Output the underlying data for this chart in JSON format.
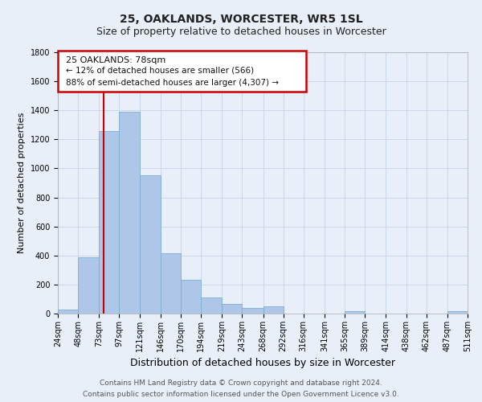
{
  "title": "25, OAKLANDS, WORCESTER, WR5 1SL",
  "subtitle": "Size of property relative to detached houses in Worcester",
  "xlabel": "Distribution of detached houses by size in Worcester",
  "ylabel": "Number of detached properties",
  "footnote1": "Contains HM Land Registry data © Crown copyright and database right 2024.",
  "footnote2": "Contains public sector information licensed under the Open Government Licence v3.0.",
  "bar_left_edges": [
    24,
    48,
    73,
    97,
    121,
    146,
    170,
    194,
    219,
    243,
    268,
    292,
    316,
    341,
    365,
    389,
    414,
    438,
    462,
    487
  ],
  "bar_widths": [
    24,
    25,
    24,
    24,
    25,
    24,
    24,
    25,
    24,
    25,
    24,
    24,
    25,
    24,
    24,
    25,
    24,
    24,
    25,
    24
  ],
  "bar_heights": [
    25,
    390,
    1260,
    1390,
    950,
    415,
    235,
    110,
    65,
    40,
    50,
    0,
    0,
    0,
    15,
    0,
    0,
    0,
    0,
    15
  ],
  "bar_color": "#aec6e8",
  "bar_edgecolor": "#7bafd4",
  "x_tick_labels": [
    "24sqm",
    "48sqm",
    "73sqm",
    "97sqm",
    "121sqm",
    "146sqm",
    "170sqm",
    "194sqm",
    "219sqm",
    "243sqm",
    "268sqm",
    "292sqm",
    "316sqm",
    "341sqm",
    "365sqm",
    "389sqm",
    "414sqm",
    "438sqm",
    "462sqm",
    "487sqm",
    "511sqm"
  ],
  "x_tick_positions": [
    24,
    48,
    73,
    97,
    121,
    146,
    170,
    194,
    219,
    243,
    268,
    292,
    316,
    341,
    365,
    389,
    414,
    438,
    462,
    487,
    511
  ],
  "xlim": [
    24,
    511
  ],
  "ylim": [
    0,
    1800
  ],
  "yticks": [
    0,
    200,
    400,
    600,
    800,
    1000,
    1200,
    1400,
    1600,
    1800
  ],
  "property_line_x": 78,
  "property_label": "25 OAKLANDS: 78sqm",
  "annotation_line1": "← 12% of detached houses are smaller (566)",
  "annotation_line2": "88% of semi-detached houses are larger (4,307) →",
  "box_color": "#cc0000",
  "box_facecolor": "#ffffff",
  "grid_color": "#c8d8ea",
  "bg_color": "#e8eff8",
  "title_fontsize": 10,
  "subtitle_fontsize": 9,
  "ylabel_fontsize": 8,
  "xlabel_fontsize": 9,
  "tick_fontsize": 7,
  "footnote_fontsize": 6.5
}
